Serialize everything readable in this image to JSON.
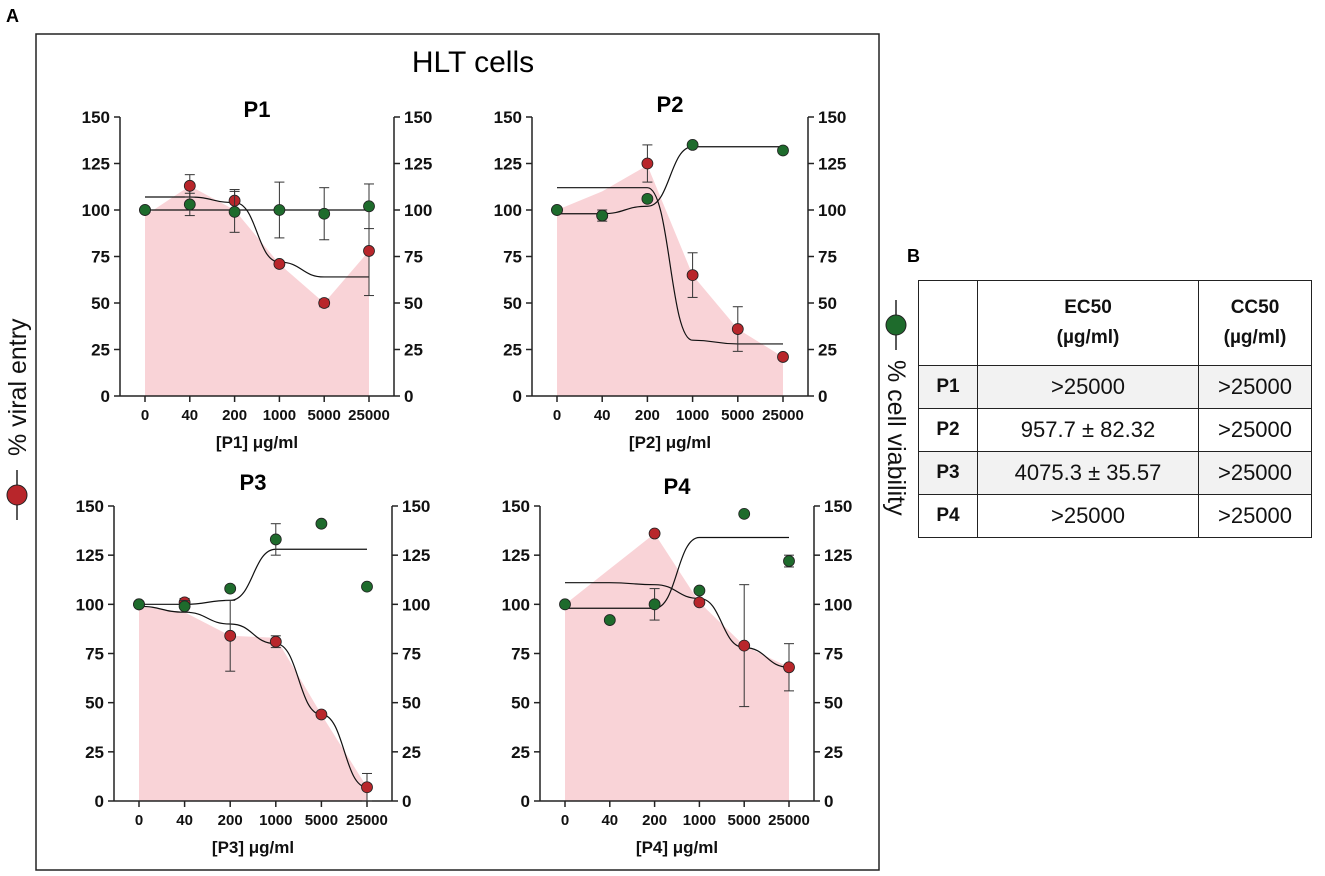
{
  "panels": {
    "a": "A",
    "b": "B"
  },
  "figure_title": "HLT cells",
  "left_axis_label": "% viral entry",
  "right_axis_label": "% cell viability",
  "colors": {
    "viral_entry": "#b8262b",
    "cell_viability": "#1e6b2c",
    "shade": "#f9d3d7"
  },
  "chart_data": [
    {
      "type": "line",
      "title": "P1",
      "xlabel": "[P1] μg/ml",
      "ylabel": "% viral entry",
      "y2label": "% cell viability",
      "categories": [
        "0",
        "40",
        "200",
        "1000",
        "5000",
        "25000"
      ],
      "ylim": [
        0,
        150
      ],
      "yticks": [
        0,
        25,
        50,
        75,
        100,
        125,
        150
      ],
      "series": [
        {
          "name": "% viral entry",
          "values": [
            100,
            113,
            105,
            71,
            50,
            78
          ],
          "errors": [
            0,
            6,
            6,
            0,
            2,
            24
          ]
        },
        {
          "name": "% cell viability",
          "values": [
            100,
            103,
            99,
            100,
            98,
            102
          ],
          "errors": [
            0,
            6,
            11,
            15,
            14,
            12
          ]
        }
      ],
      "shade": [
        97,
        113,
        100,
        71,
        50,
        78
      ],
      "fit_viral": [
        107,
        107,
        104,
        72,
        64,
        64
      ],
      "fit_viability": [
        100,
        100,
        100,
        100,
        100,
        100
      ]
    },
    {
      "type": "line",
      "title": "P2",
      "xlabel": "[P2] μg/ml",
      "ylabel": "% viral entry",
      "y2label": "% cell viability",
      "categories": [
        "0",
        "40",
        "200",
        "1000",
        "5000",
        "25000"
      ],
      "ylim": [
        0,
        150
      ],
      "yticks": [
        0,
        25,
        50,
        75,
        100,
        125,
        150
      ],
      "series": [
        {
          "name": "% viral entry",
          "values": [
            100,
            97,
            125,
            65,
            36,
            21
          ],
          "errors": [
            0,
            0,
            10,
            12,
            12,
            0
          ]
        },
        {
          "name": "% cell viability",
          "values": [
            100,
            97,
            106,
            135,
            null,
            132
          ],
          "errors": [
            0,
            3,
            0,
            0,
            0,
            0
          ]
        }
      ],
      "shade": [
        100,
        110,
        124,
        65,
        36,
        21
      ],
      "fit_viral": [
        112,
        112,
        112,
        30,
        28,
        28
      ],
      "fit_viability": [
        98,
        98,
        102,
        134,
        134,
        134
      ]
    },
    {
      "type": "line",
      "title": "P3",
      "xlabel": "[P3] μg/ml",
      "ylabel": "% viral entry",
      "y2label": "% cell viability",
      "categories": [
        "0",
        "40",
        "200",
        "1000",
        "5000",
        "25000"
      ],
      "ylim": [
        0,
        150
      ],
      "yticks": [
        0,
        25,
        50,
        75,
        100,
        125,
        150
      ],
      "series": [
        {
          "name": "% viral entry",
          "values": [
            100,
            101,
            84,
            81,
            44,
            7
          ],
          "errors": [
            0,
            2,
            18,
            3,
            0,
            7
          ]
        },
        {
          "name": "% cell viability",
          "values": [
            100,
            99,
            108,
            133,
            141,
            109
          ],
          "errors": [
            0,
            3,
            0,
            8,
            0,
            0
          ]
        }
      ],
      "shade": [
        99,
        96,
        84,
        83,
        44,
        7
      ],
      "fit_viral": [
        99,
        96,
        90,
        80,
        44,
        7
      ],
      "fit_viability": [
        100,
        100,
        102,
        128,
        128,
        128
      ]
    },
    {
      "type": "line",
      "title": "P4",
      "xlabel": "[P4] μg/ml",
      "ylabel": "% viral entry",
      "y2label": "% cell viability",
      "categories": [
        "0",
        "40",
        "200",
        "1000",
        "5000",
        "25000"
      ],
      "ylim": [
        0,
        150
      ],
      "yticks": [
        0,
        25,
        50,
        75,
        100,
        125,
        150
      ],
      "series": [
        {
          "name": "% viral entry",
          "values": [
            null,
            null,
            136,
            101,
            79,
            68
          ],
          "errors": [
            0,
            0,
            0,
            0,
            31,
            12
          ]
        },
        {
          "name": "% cell viability",
          "values": [
            100,
            92,
            100,
            107,
            146,
            122
          ],
          "errors": [
            0,
            0,
            8,
            0,
            0,
            3
          ]
        }
      ],
      "shade": [
        100,
        118,
        136,
        101,
        79,
        68
      ],
      "fit_viral": [
        111,
        111,
        110,
        103,
        78,
        68
      ],
      "fit_viability": [
        98,
        98,
        98,
        134,
        134,
        134
      ]
    }
  ],
  "table": {
    "headers": [
      "",
      "EC50 (µg/ml)",
      "CC50 (µg/ml)"
    ],
    "header_lines": [
      [
        "",
        ""
      ],
      [
        "EC50",
        "(µg/ml)"
      ],
      [
        "CC50",
        "(µg/ml)"
      ]
    ],
    "rows": [
      {
        "label": "P1",
        "ec50": ">25000",
        "cc50": ">25000",
        "shaded": true
      },
      {
        "label": "P2",
        "ec50": "957.7 ± 82.32",
        "cc50": ">25000",
        "shaded": false
      },
      {
        "label": "P3",
        "ec50": "4075.3 ± 35.57",
        "cc50": ">25000",
        "shaded": true
      },
      {
        "label": "P4",
        "ec50": ">25000",
        "cc50": ">25000",
        "shaded": false
      }
    ]
  }
}
